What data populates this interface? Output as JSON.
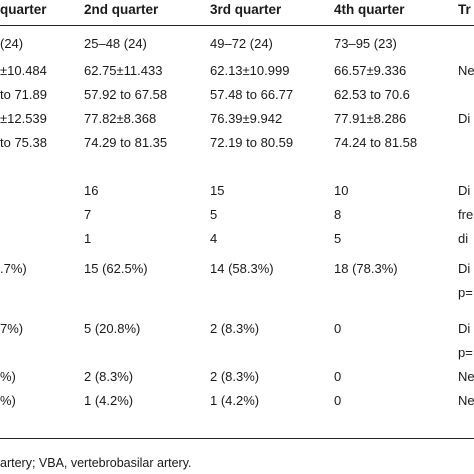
{
  "header": {
    "col0": "quarter",
    "col1": "2nd quarter",
    "col2": "3rd quarter",
    "col3": "4th quarter",
    "col4": "Tr"
  },
  "rows": [
    [
      "(24)",
      "25–48 (24)",
      "49–72 (24)",
      "73–95 (23)",
      ""
    ],
    [
      "±10.484",
      "62.75±11.433",
      "62.13±10.999",
      "66.57±9.336",
      "Ne"
    ],
    [
      "to 71.89",
      "57.92 to 67.58",
      "57.48 to 66.77",
      "62.53 to 70.6",
      ""
    ],
    [
      "±12.539",
      "77.82±8.368",
      "76.39±9.942",
      "77.91±8.286",
      "Di"
    ],
    [
      "to 75.38",
      "74.29 to 81.35",
      "72.19 to 80.59",
      "74.24 to 81.58",
      ""
    ],
    [
      "",
      "16",
      "15",
      "10",
      "Di"
    ],
    [
      "",
      "7",
      "5",
      "8",
      "fre"
    ],
    [
      "",
      "1",
      "4",
      "5",
      "di"
    ],
    [
      ".7%)",
      "15 (62.5%)",
      "14 (58.3%)",
      "18 (78.3%)",
      "Di"
    ],
    [
      "",
      "",
      "",
      "",
      "p="
    ],
    [
      "7%)",
      "5 (20.8%)",
      "2 (8.3%)",
      "0",
      "Di"
    ],
    [
      "",
      "",
      "",
      "",
      "p="
    ],
    [
      "%)",
      "2 (8.3%)",
      "2 (8.3%)",
      "0",
      "Ne"
    ],
    [
      "%)",
      "1 (4.2%)",
      "1 (4.2%)",
      "0",
      "Ne"
    ]
  ],
  "footnote": "artery; VBA, vertebrobasilar artery."
}
